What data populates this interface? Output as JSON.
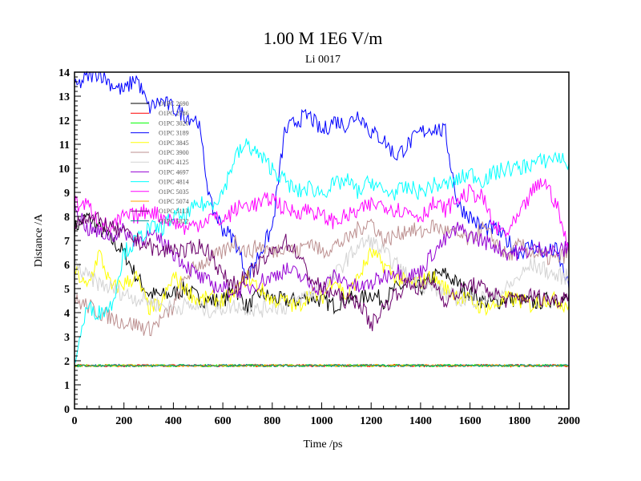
{
  "chart_data": {
    "type": "line",
    "title": "1.00 M 1E6 V/m",
    "subtitle": "Li 0017",
    "xlabel": "Time /ps",
    "ylabel": "Distance /A",
    "xlim": [
      0,
      2000
    ],
    "ylim": [
      0,
      14
    ],
    "xticks": [
      0,
      200,
      400,
      600,
      800,
      1000,
      1200,
      1400,
      1600,
      1800,
      2000
    ],
    "yticks": [
      0,
      1,
      2,
      3,
      4,
      5,
      6,
      7,
      8,
      9,
      10,
      11,
      12,
      13,
      14
    ],
    "grid": false,
    "legend_position": "top-left",
    "x_step": 50,
    "series": [
      {
        "name": "O1PC 2690",
        "color": "#000000",
        "values": [
          7.5,
          8,
          7.5,
          7,
          6.5,
          5.5,
          4.8,
          4.7,
          4.8,
          5,
          4.6,
          4.5,
          4.5,
          5,
          4.2,
          4.8,
          4.6,
          4.5,
          4.5,
          4.7,
          4.5,
          4.3,
          4.6,
          4.5,
          4.8,
          4.5,
          5,
          5.2,
          5,
          5.5,
          5.6,
          5.2,
          4.8,
          4.5,
          4.4,
          4.6,
          4.5,
          4.4,
          4.5,
          4.6,
          4.5
        ]
      },
      {
        "name": "O1PC 2786",
        "color": "#ff0000",
        "constant": 1.8
      },
      {
        "name": "O1PC 3020",
        "color": "#00ff00",
        "constant": 1.8
      },
      {
        "name": "O1PC 3189",
        "color": "#0000ff",
        "values": [
          13.3,
          13.8,
          14,
          13.5,
          13.2,
          13.8,
          12.5,
          12.8,
          12.5,
          12.2,
          12,
          8.5,
          7.5,
          7,
          5.5,
          6.5,
          7.5,
          11.5,
          12,
          12.2,
          11.5,
          12,
          11.8,
          12.3,
          11.5,
          11.2,
          10.5,
          11,
          11.5,
          11.7,
          11.5,
          8.5,
          8,
          7.5,
          7.5,
          7,
          6.5,
          6.8,
          6.5,
          6.6,
          5
        ]
      },
      {
        "name": "O1PC 3845",
        "color": "#ffff00",
        "values": [
          5.8,
          5,
          6.5,
          5,
          5.2,
          5.5,
          4.2,
          4.3,
          5.5,
          5,
          4.5,
          4.6,
          4.5,
          4.8,
          5.5,
          5,
          4.5,
          4.5,
          4.2,
          4.8,
          4.6,
          5.5,
          4.6,
          5.5,
          6.5,
          6,
          5.5,
          5.2,
          5.3,
          5.5,
          5,
          4.7,
          4.5,
          4.2,
          4.3,
          4.6,
          4.5,
          4.3,
          4.6,
          4.5,
          4.3
        ]
      },
      {
        "name": "O1PC 3900",
        "color": "#bc8f8f",
        "values": [
          4.5,
          4.3,
          4,
          3.8,
          3.6,
          3.5,
          3.3,
          3.7,
          4.2,
          5.5,
          6,
          6.2,
          6.5,
          7,
          6.5,
          6.8,
          6.5,
          6.8,
          6.5,
          7,
          6.5,
          6.8,
          7,
          7.5,
          7.8,
          7,
          7.2,
          7.5,
          7.3,
          7.6,
          7.4,
          7.2,
          7,
          7.5,
          7,
          6.3,
          6.8,
          6.5,
          6.3,
          6.2,
          6.5
        ]
      },
      {
        "name": "O1PC 4125",
        "color": "#d3d3d3",
        "values": [
          6,
          5.5,
          5.2,
          5,
          4.8,
          4.6,
          4.5,
          4.3,
          4.2,
          4.3,
          4.2,
          4.1,
          4.2,
          4.3,
          4.2,
          4.1,
          4.3,
          4.2,
          4.5,
          4.8,
          5,
          5.5,
          6.2,
          6.8,
          7,
          6.5,
          6,
          5.5,
          5.2,
          5,
          4.8,
          4.6,
          4.5,
          4.6,
          4.7,
          5,
          5.5,
          6,
          5.8,
          5.5,
          5.5
        ]
      },
      {
        "name": "O1PC 4697",
        "color": "#9400d3",
        "values": [
          8.5,
          7.5,
          7.3,
          7.2,
          7.4,
          7,
          7.2,
          7,
          6.5,
          6,
          5.5,
          5.2,
          5,
          4.9,
          5,
          5.3,
          5.5,
          5.8,
          5.6,
          5.2,
          5,
          5.5,
          5.3,
          5,
          5.2,
          5.5,
          5.8,
          5.5,
          5.7,
          6.5,
          7,
          7.5,
          7.2,
          7,
          6.8,
          6.5,
          6.5,
          6.6,
          6.7,
          6.5,
          6.7
        ]
      },
      {
        "name": "O1PC 4814",
        "color": "#00ffff",
        "values": [
          2,
          4.2,
          4,
          4.3,
          6.5,
          7,
          7.5,
          7.5,
          8,
          8,
          8.5,
          8.5,
          9,
          10.5,
          11,
          10.5,
          10,
          9.5,
          9,
          9.2,
          9,
          9.3,
          9.5,
          9,
          9.5,
          9,
          9,
          9.2,
          9,
          9.3,
          9.3,
          9.5,
          9.8,
          9.5,
          9.8,
          10,
          10,
          10.2,
          10.3,
          10.5,
          10.2
        ]
      },
      {
        "name": "O1PC 5035",
        "color": "#ff00ff",
        "values": [
          8.5,
          8.5,
          7.8,
          7.5,
          8,
          8,
          8.3,
          8,
          7.8,
          7.5,
          7.7,
          8,
          7.8,
          8.3,
          8.5,
          8.5,
          8.8,
          8.3,
          8.2,
          8.3,
          8,
          7.8,
          8,
          8.2,
          8.5,
          8.5,
          8.3,
          8.2,
          8,
          8.5,
          8.3,
          8.7,
          9,
          8.8,
          7.5,
          7.3,
          8,
          9,
          9.5,
          8.5,
          6.5
        ]
      },
      {
        "name": "O1PC 5074",
        "color": "#ffa500",
        "constant": 1.8
      },
      {
        "name": "O1PC 5113",
        "color": "#6b006b",
        "values": [
          7.8,
          8,
          7.8,
          7.5,
          7.3,
          7,
          6.8,
          6.5,
          6.7,
          6.5,
          6.8,
          6.5,
          5.5,
          5.2,
          5.5,
          6,
          6.5,
          7,
          6.5,
          5.5,
          5,
          4.8,
          4.5,
          4.5,
          3.5,
          4.2,
          4.8,
          5.2,
          5,
          5.3,
          4.5,
          4.8,
          5.2,
          5,
          4.8,
          4.5,
          4.6,
          4.7,
          4.6,
          4.5,
          4.8
        ]
      },
      {
        "name": "O1PC 5822",
        "color": "#008b8b",
        "constant": 1.8
      }
    ]
  }
}
